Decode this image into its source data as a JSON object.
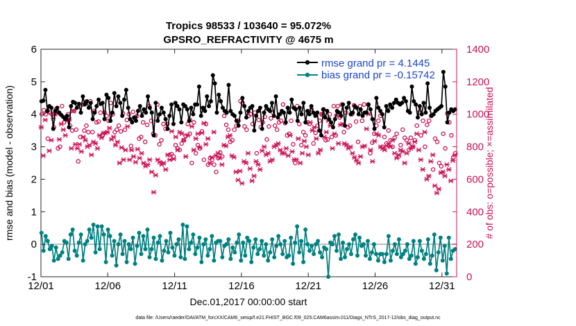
{
  "chart_data": {
    "type": "line",
    "title_line1": "Tropics 98533 / 103640 = 95.072%",
    "title_line2": "GPSRO_REFRACTIVITY @ 4675 m",
    "xlabel": "Dec.01,2017 00:00:00 start",
    "ylabel_left": "rmse and bias (model - observation)",
    "ylabel_right": "# of obs: o=possible; ×=assimilated",
    "footnote": "data file: /Users/raeder/DAI/ATM_forcXX/CAM6_setup/f.e21.FHIST_BGC.f09_025.CAM6assim.011/Diags_NTrS_2017-12/obs_diag_output.nc",
    "x_tick_labels": [
      "12/01",
      "12/06",
      "12/11",
      "12/16",
      "12/21",
      "12/26",
      "12/31"
    ],
    "x_tick_values": [
      0,
      5,
      10,
      15,
      20,
      25,
      30
    ],
    "xlim": [
      0,
      31.1
    ],
    "ylim_left": [
      -1,
      6
    ],
    "y_left_ticks": [
      "-1",
      "0",
      "1",
      "2",
      "3",
      "4",
      "5",
      "6"
    ],
    "ylim_right": [
      0,
      1400
    ],
    "y_right_ticks": [
      "0",
      "200",
      "400",
      "600",
      "800",
      "1000",
      "1200",
      "1400"
    ],
    "legend": [
      {
        "name": "rmse grand pr = 4.1445",
        "color": "#000000"
      },
      {
        "name": "bias grand pr = -0.15742",
        "color": "#008080"
      }
    ],
    "colors": {
      "rmse": "#000000",
      "bias": "#008080",
      "obs": "#cc1155",
      "zero_line": "#bbbbbb",
      "legend_text": "#1a44cc"
    },
    "series": [
      {
        "name": "rmse",
        "axis": "left",
        "values": [
          4.4,
          4.42,
          4.75,
          4.1,
          4.25,
          4.2,
          3.55,
          4.1,
          4.2,
          4.05,
          3.98,
          3.92,
          3.85,
          3.95,
          3.6,
          4.25,
          4.38,
          4.35,
          4.2,
          4.32,
          4.05,
          4.55,
          4.3,
          4.4,
          4.2,
          4.35,
          3.85,
          4.05,
          4.25,
          4.45,
          4.32,
          4.35,
          3.85,
          4.6,
          4.5,
          3.8,
          4.05,
          4.65,
          4.25,
          4.55,
          4.35,
          3.95,
          4.45,
          4.75,
          4.2,
          3.85,
          3.75,
          3.9,
          3.8,
          4.1,
          4.25,
          3.95,
          4.15,
          4.05,
          4.55,
          4.2,
          4.05,
          3.35,
          4.35,
          3.8,
          4.0,
          4.2,
          4.05,
          3.85,
          3.55,
          3.95,
          4.3,
          3.7,
          4.35,
          4.25,
          4.15,
          3.75,
          4.3,
          4.25,
          4.15,
          3.8,
          4.2,
          4.0,
          4.3,
          4.3,
          4.85,
          3.95,
          4.2,
          4.1,
          4.55,
          4.25,
          4.4,
          5.2,
          4.95,
          4.05,
          4.6,
          4.4,
          4.2,
          4.1,
          4.05,
          4.9,
          4.1,
          4.0,
          3.95,
          3.8,
          3.65,
          4.05,
          4.5,
          4.25,
          3.9,
          4.1,
          4.2,
          4.25,
          3.5,
          3.95,
          4.1,
          4.2,
          3.55,
          4.05,
          4.25,
          4.15,
          4.1,
          4.35,
          3.95,
          4.55,
          3.9,
          4.0,
          4.1,
          4.05,
          3.75,
          4.2,
          4.05,
          4.45,
          4.2,
          4.15,
          3.8,
          4.2,
          4.0,
          4.35,
          3.75,
          4.1,
          4.0,
          4.25,
          4.05,
          3.95,
          4.05,
          3.5,
          3.35,
          4.15,
          3.9,
          4.1,
          3.85,
          3.75,
          3.6,
          3.85,
          4.1,
          4.05,
          3.95,
          4.3,
          3.65,
          4.2,
          4.35,
          4.0,
          4.05,
          4.25,
          4.2,
          4.0,
          4.15,
          3.95,
          4.05,
          4.05,
          4.3,
          4.15,
          3.85,
          3.55,
          4.5,
          4.2,
          4.1,
          4.0,
          3.6,
          4.25,
          4.1,
          4.3,
          4.2,
          4.35,
          4.45,
          4.35,
          4.3,
          4.35,
          4.5,
          4.4,
          4.1,
          4.05,
          4.85,
          4.4,
          4.3,
          3.9,
          4.25,
          4.0,
          4.35,
          4.05,
          4.95,
          4.2,
          3.95,
          4.0,
          4.1,
          4.15,
          4.2,
          4.25,
          5.3,
          4.85,
          3.75,
          4.05,
          4.15,
          4.1,
          4.15
        ]
      },
      {
        "name": "bias",
        "axis": "left",
        "values": [
          0.35,
          -0.2,
          0.25,
          0.1,
          -0.15,
          -0.05,
          -0.5,
          -0.1,
          -0.45,
          -0.35,
          -0.25,
          0.1,
          0.05,
          -0.45,
          0.3,
          0.45,
          -0.2,
          -0.35,
          0.05,
          0.3,
          -0.5,
          0.0,
          0.1,
          0.45,
          0.2,
          0.6,
          -0.25,
          0.55,
          -0.15,
          0.55,
          0.3,
          -0.55,
          0.45,
          0.25,
          -0.35,
          0.1,
          -0.65,
          0.0,
          0.3,
          -0.3,
          0.1,
          -0.55,
          0.0,
          -0.15,
          0.2,
          -0.6,
          -0.05,
          0.35,
          -0.3,
          0.25,
          -0.15,
          0.45,
          -0.4,
          -0.15,
          0.2,
          -0.45,
          0.05,
          0.25,
          -0.5,
          -0.2,
          0.1,
          -0.25,
          0.35,
          -0.1,
          -0.35,
          0.0,
          0.15,
          -0.4,
          0.6,
          -0.45,
          0.55,
          -0.15,
          0.05,
          0.3,
          -0.3,
          -0.1,
          0.2,
          -0.55,
          0.0,
          0.15,
          -0.35,
          -0.15,
          0.25,
          -0.5,
          0.05,
          0.1,
          0.1,
          -0.4,
          -0.05,
          0.0,
          0.15,
          -0.45,
          -0.1,
          -0.25,
          0.05,
          0.3,
          -0.5,
          0.05,
          -0.35,
          0.2,
          0.1,
          -0.55,
          -0.1,
          0.15,
          -0.3,
          -0.15,
          0.1,
          -0.35,
          0.0,
          -0.5,
          -0.25,
          0.15,
          -0.4,
          -0.05,
          0.25,
          0.0,
          -0.3,
          0.1,
          -0.4,
          -0.35,
          0.2,
          -0.6,
          0.05,
          0.55,
          -0.25,
          0.1,
          -0.55,
          0.45,
          0.0,
          -0.2,
          -0.05,
          -0.3,
          0.0,
          0.1,
          -0.25,
          -0.4,
          -0.1,
          -0.15,
          -1.0,
          0.05,
          0.0,
          0.25,
          -0.2,
          0.3,
          -0.45,
          0.05,
          -0.4,
          -0.15,
          0.0,
          -0.3,
          0.15,
          0.3,
          -0.35,
          0.2,
          -0.05,
          0.0,
          -0.35,
          0.1,
          -0.45,
          -0.25,
          0.0,
          -0.3,
          -0.5,
          -0.3,
          -0.3,
          -0.55,
          -0.3,
          0.25,
          -0.5,
          -0.2,
          0.0,
          -0.3,
          0.15,
          -0.4,
          -0.3,
          -0.2,
          0.0,
          -0.45,
          -0.35,
          0.1,
          -0.6,
          -0.4,
          0.1,
          -0.2,
          -0.45,
          -0.3,
          0.15,
          -0.6,
          -0.35,
          0.3,
          -0.8,
          -0.25,
          0.2,
          -0.5,
          -0.05,
          -0.9,
          0.2,
          -0.45,
          -0.2,
          -0.15
        ]
      },
      {
        "name": "obs possible",
        "axis": "right",
        "values": [
          1000,
          1025,
          1000,
          850,
          1010,
          1000,
          920,
          1030,
          790,
          800,
          1050,
          950,
          970,
          1000,
          930,
          900,
          1020,
          905,
          710,
          860,
          1060,
          900,
          930,
          890,
          1080,
          890,
          1020,
          950,
          955,
          1010,
          870,
          1010,
          990,
          960,
          1070,
          1000,
          890,
          905,
          930,
          895,
          1005,
          905,
          965,
          1000,
          805,
          1015,
          980,
          990,
          850,
          860,
          950,
          830,
          935,
          1050,
          960,
          880,
          870,
          1060,
          815,
          840,
          940,
          910,
          940,
          750,
          755,
          740,
          810,
          790,
          780,
          820,
          840,
          865,
          940,
          880,
          700,
          950,
          760,
          810,
          790,
          895,
          720,
          940,
          690,
          730,
          720,
          690,
          645,
          730,
          765,
          740,
          990,
          935,
          905,
          830,
          840,
          905,
          930,
          960,
          1080,
          1070,
          925,
          905,
          990,
          1000,
          940,
          1010,
          760,
          965,
          920,
          950,
          985,
          845,
          925,
          975,
          1010,
          930,
          905,
          950,
          960,
          1060,
          945,
          870,
          880,
          960,
          815,
          700,
          1050,
          940,
          810,
          890,
          870,
          950,
          940,
          1030,
          820,
          885,
          930,
          960,
          1000,
          1030,
          840,
          845,
          1000,
          860,
          1050,
          870,
          1050,
          980,
          1060,
          890,
          1010,
          920,
          930,
          1000,
          1055,
          955,
          830,
          1050,
          960,
          1060,
          1010,
          1060,
          760,
          825,
          880,
          930,
          960,
          990,
          800,
          860,
          820,
          900,
          840,
          800,
          855,
          880,
          740,
          810,
          905,
          855,
          840,
          780,
          855,
          800,
          840,
          930,
          1010,
          870,
          960,
          800,
          935,
          960,
          990,
          660,
          850,
          830,
          700,
          680,
          880,
          790,
          1005,
          950,
          870,
          735,
          760
        ]
      },
      {
        "name": "obs assimilated",
        "axis": "right",
        "values": [
          920,
          745,
          965,
          1015,
          775,
          840,
          975,
          1000,
          1005,
          845,
          940,
          905,
          870,
          960,
          970,
          790,
          1020,
          815,
          790,
          815,
          770,
          860,
          840,
          800,
          810,
          750,
          830,
          820,
          790,
          870,
          855,
          885,
          885,
          890,
          915,
          845,
          860,
          810,
          830,
          700,
          795,
          720,
          780,
          925,
          720,
          780,
          740,
          705,
          785,
          730,
          760,
          700,
          680,
          690,
          720,
          645,
          520,
          625,
          720,
          705,
          690,
          700,
          660,
          750,
          720,
          895,
          725,
          860,
          780,
          890,
          880,
          840,
          740,
          870,
          965,
          925,
          780,
          850,
          880,
          795,
          885,
          945,
          815,
          850,
          700,
          735,
          890,
          745,
          760,
          730,
          690,
          810,
          805,
          860,
          870,
          745,
          735,
          645,
          595,
          650,
          575,
          710,
          700,
          760,
          665,
          590,
          620,
          710,
          690,
          660,
          775,
          800,
          750,
          760,
          710,
          720,
          800,
          810,
          820,
          780,
          760,
          760,
          790,
          745,
          870,
          770,
          720,
          720,
          850,
          700,
          760,
          835,
          800,
          750,
          950,
          900,
          920,
          850,
          760,
          780,
          1000,
          860,
          890,
          960,
          930,
          790,
          880,
          990,
          820,
          935,
          940,
          820,
          810,
          790,
          800,
          760,
          735,
          715,
          700,
          740,
          800,
          805,
          910,
          1000,
          780,
          710,
          835,
          880,
          870,
          800,
          790,
          780,
          805,
          820,
          800,
          840,
          760,
          730,
          750,
          780,
          770,
          700,
          760,
          820,
          790,
          800,
          830,
          880,
          780,
          720,
          660,
          890,
          600,
          620,
          710,
          750,
          560,
          515,
          540,
          640,
          645,
          620,
          690,
          660,
          590,
          715,
          750
        ]
      }
    ]
  }
}
